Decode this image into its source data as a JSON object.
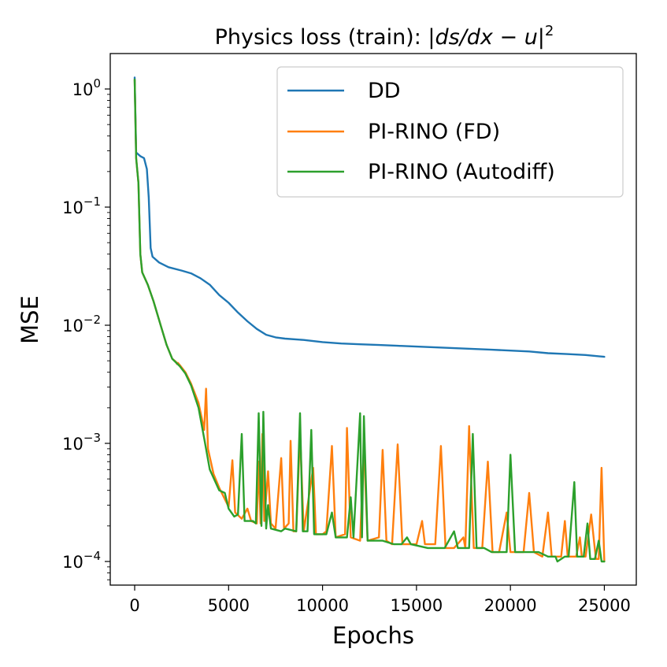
{
  "chart_data": {
    "type": "line",
    "title_prefix": "Physics loss (train): ",
    "title_math": "|ds/dx − u|",
    "title_exponent": "2",
    "xlabel": "Epochs",
    "ylabel": "MSE",
    "xlim": [
      -1300,
      26700
    ],
    "ylim_log10": [
      -4.2,
      0.3
    ],
    "y_scale": "log",
    "grid": false,
    "legend_position": "upper right",
    "x_ticks": [
      {
        "value": 0,
        "label": "0"
      },
      {
        "value": 5000,
        "label": "5000"
      },
      {
        "value": 10000,
        "label": "10000"
      },
      {
        "value": 15000,
        "label": "15000"
      },
      {
        "value": 20000,
        "label": "20000"
      },
      {
        "value": 25000,
        "label": "25000"
      }
    ],
    "y_ticks": [
      {
        "exp": 0,
        "base": "10",
        "sup": "0"
      },
      {
        "exp": -1,
        "base": "10",
        "sup": "−1"
      },
      {
        "exp": -2,
        "base": "10",
        "sup": "−2"
      },
      {
        "exp": -3,
        "base": "10",
        "sup": "−3"
      },
      {
        "exp": -4,
        "base": "10",
        "sup": "−4"
      }
    ],
    "series": [
      {
        "name": "DD",
        "color": "#1f77b4",
        "points": [
          [
            0,
            1.25
          ],
          [
            80,
            0.29
          ],
          [
            300,
            0.27
          ],
          [
            500,
            0.26
          ],
          [
            650,
            0.21
          ],
          [
            750,
            0.12
          ],
          [
            850,
            0.045
          ],
          [
            950,
            0.038
          ],
          [
            1300,
            0.034
          ],
          [
            1800,
            0.031
          ],
          [
            2500,
            0.029
          ],
          [
            3000,
            0.0275
          ],
          [
            3500,
            0.025
          ],
          [
            4000,
            0.022
          ],
          [
            4500,
            0.018
          ],
          [
            5000,
            0.0155
          ],
          [
            5500,
            0.0128
          ],
          [
            6000,
            0.0108
          ],
          [
            6500,
            0.0093
          ],
          [
            7000,
            0.0083
          ],
          [
            7500,
            0.0079
          ],
          [
            8000,
            0.0077
          ],
          [
            9000,
            0.0075
          ],
          [
            10000,
            0.0072
          ],
          [
            11000,
            0.007
          ],
          [
            12000,
            0.0069
          ],
          [
            13000,
            0.0068
          ],
          [
            14000,
            0.0067
          ],
          [
            15000,
            0.0066
          ],
          [
            16000,
            0.0065
          ],
          [
            17000,
            0.0064
          ],
          [
            18000,
            0.0063
          ],
          [
            19000,
            0.0062
          ],
          [
            20000,
            0.0061
          ],
          [
            21000,
            0.006
          ],
          [
            22000,
            0.0058
          ],
          [
            23000,
            0.0057
          ],
          [
            24000,
            0.0056
          ],
          [
            25000,
            0.0054
          ]
        ]
      },
      {
        "name": "PI-RINO (FD)",
        "color": "#ff7f0e",
        "points": [
          [
            0,
            1.2
          ],
          [
            80,
            0.26
          ],
          [
            200,
            0.16
          ],
          [
            300,
            0.04
          ],
          [
            400,
            0.028
          ],
          [
            700,
            0.022
          ],
          [
            1000,
            0.016
          ],
          [
            1400,
            0.0098
          ],
          [
            1700,
            0.0068
          ],
          [
            2000,
            0.0052
          ],
          [
            2200,
            0.0049
          ],
          [
            2250,
            0.0047
          ],
          [
            2300,
            0.0048
          ],
          [
            2400,
            0.0046
          ],
          [
            2700,
            0.004
          ],
          [
            3000,
            0.0032
          ],
          [
            3400,
            0.0022
          ],
          [
            3700,
            0.0013
          ],
          [
            3800,
            0.0029
          ],
          [
            3900,
            0.0009
          ],
          [
            4200,
            0.00055
          ],
          [
            4500,
            0.00042
          ],
          [
            5000,
            0.00029
          ],
          [
            5200,
            0.00072
          ],
          [
            5350,
            0.00026
          ],
          [
            5700,
            0.00023
          ],
          [
            6000,
            0.00028
          ],
          [
            6200,
            0.00022
          ],
          [
            6500,
            0.00021
          ],
          [
            6600,
            0.0007
          ],
          [
            6700,
            0.00021
          ],
          [
            6800,
            0.0012
          ],
          [
            6900,
            0.00022
          ],
          [
            7100,
            0.00058
          ],
          [
            7250,
            0.00021
          ],
          [
            7500,
            0.00019
          ],
          [
            7800,
            0.00075
          ],
          [
            7950,
            0.00019
          ],
          [
            8200,
            0.00021
          ],
          [
            8300,
            0.00105
          ],
          [
            8450,
            0.00018
          ],
          [
            8600,
            0.00018
          ],
          [
            8800,
            0.00125
          ],
          [
            9000,
            0.00018
          ],
          [
            9500,
            0.00062
          ],
          [
            9650,
            0.00017
          ],
          [
            10000,
            0.00017
          ],
          [
            10200,
            0.00018
          ],
          [
            10500,
            0.00095
          ],
          [
            10700,
            0.00016
          ],
          [
            11200,
            0.00017
          ],
          [
            11300,
            0.00135
          ],
          [
            11500,
            0.00016
          ],
          [
            12000,
            0.00015
          ],
          [
            12200,
            0.00095
          ],
          [
            12400,
            0.00015
          ],
          [
            13000,
            0.00016
          ],
          [
            13200,
            0.00088
          ],
          [
            13400,
            0.00015
          ],
          [
            13700,
            0.00014
          ],
          [
            14000,
            0.00098
          ],
          [
            14250,
            0.00014
          ],
          [
            15000,
            0.00014
          ],
          [
            15300,
            0.00022
          ],
          [
            15450,
            0.00014
          ],
          [
            16000,
            0.00014
          ],
          [
            16300,
            0.00095
          ],
          [
            16550,
            0.00013
          ],
          [
            17000,
            0.00013
          ],
          [
            17500,
            0.00016
          ],
          [
            17600,
            0.00013
          ],
          [
            17800,
            0.0014
          ],
          [
            18050,
            0.00013
          ],
          [
            18500,
            0.00013
          ],
          [
            18800,
            0.0007
          ],
          [
            19050,
            0.00012
          ],
          [
            19400,
            0.00012
          ],
          [
            19800,
            0.00026
          ],
          [
            20000,
            0.00012
          ],
          [
            20700,
            0.00012
          ],
          [
            21000,
            0.00038
          ],
          [
            21250,
            0.00012
          ],
          [
            21700,
            0.00011
          ],
          [
            22000,
            0.00026
          ],
          [
            22200,
            0.00011
          ],
          [
            22700,
            0.00011
          ],
          [
            22900,
            0.00022
          ],
          [
            23050,
            0.00011
          ],
          [
            23500,
            0.00011
          ],
          [
            23700,
            0.00016
          ],
          [
            23800,
            0.00011
          ],
          [
            24000,
            0.00011
          ],
          [
            24300,
            0.00025
          ],
          [
            24550,
            0.000105
          ],
          [
            24700,
            0.000105
          ],
          [
            24850,
            0.00062
          ],
          [
            25000,
            0.0001
          ]
        ]
      },
      {
        "name": "PI-RINO (Autodiff)",
        "color": "#2ca02c",
        "points": [
          [
            0,
            1.2
          ],
          [
            80,
            0.26
          ],
          [
            200,
            0.16
          ],
          [
            300,
            0.04
          ],
          [
            400,
            0.028
          ],
          [
            700,
            0.022
          ],
          [
            1000,
            0.016
          ],
          [
            1400,
            0.0098
          ],
          [
            1700,
            0.0068
          ],
          [
            2000,
            0.0052
          ],
          [
            2400,
            0.0045
          ],
          [
            2700,
            0.0039
          ],
          [
            3000,
            0.0031
          ],
          [
            3400,
            0.002
          ],
          [
            3700,
            0.0011
          ],
          [
            4000,
            0.0006
          ],
          [
            4500,
            0.0004
          ],
          [
            4800,
            0.00038
          ],
          [
            5000,
            0.00028
          ],
          [
            5300,
            0.00024
          ],
          [
            5500,
            0.00025
          ],
          [
            5700,
            0.0012
          ],
          [
            5850,
            0.00022
          ],
          [
            6300,
            0.00022
          ],
          [
            6450,
            0.00021
          ],
          [
            6600,
            0.0018
          ],
          [
            6750,
            0.0002
          ],
          [
            6850,
            0.00185
          ],
          [
            7000,
            0.00019
          ],
          [
            7100,
            0.0003
          ],
          [
            7250,
            0.00019
          ],
          [
            7800,
            0.00018
          ],
          [
            8000,
            0.00019
          ],
          [
            8600,
            0.00018
          ],
          [
            8800,
            0.0018
          ],
          [
            8950,
            0.00018
          ],
          [
            9200,
            0.00018
          ],
          [
            9400,
            0.0013
          ],
          [
            9550,
            0.00017
          ],
          [
            10200,
            0.00017
          ],
          [
            10500,
            0.00026
          ],
          [
            10700,
            0.00016
          ],
          [
            11300,
            0.00016
          ],
          [
            11500,
            0.00035
          ],
          [
            11650,
            0.00016
          ],
          [
            12000,
            0.0018
          ],
          [
            12100,
            0.00016
          ],
          [
            12200,
            0.0017
          ],
          [
            12400,
            0.00015
          ],
          [
            12800,
            0.00015
          ],
          [
            13200,
            0.00015
          ],
          [
            13800,
            0.00014
          ],
          [
            14200,
            0.00014
          ],
          [
            14500,
            0.00016
          ],
          [
            14700,
            0.00014
          ],
          [
            15600,
            0.00013
          ],
          [
            16500,
            0.00013
          ],
          [
            17000,
            0.00018
          ],
          [
            17200,
            0.00013
          ],
          [
            17800,
            0.00013
          ],
          [
            18000,
            0.0012
          ],
          [
            18200,
            0.00013
          ],
          [
            18600,
            0.00013
          ],
          [
            19000,
            0.00012
          ],
          [
            19800,
            0.00012
          ],
          [
            20000,
            0.0008
          ],
          [
            20250,
            0.00012
          ],
          [
            20800,
            0.00012
          ],
          [
            21500,
            0.00012
          ],
          [
            22000,
            0.00011
          ],
          [
            22400,
            0.00011
          ],
          [
            22500,
            0.0001
          ],
          [
            22900,
            0.00011
          ],
          [
            23100,
            0.00011
          ],
          [
            23400,
            0.00047
          ],
          [
            23550,
            0.00011
          ],
          [
            23900,
            0.00011
          ],
          [
            24100,
            0.00021
          ],
          [
            24250,
            0.000105
          ],
          [
            24500,
            0.000105
          ],
          [
            24700,
            0.00015
          ],
          [
            24850,
            0.0001
          ],
          [
            25000,
            0.0001
          ]
        ]
      }
    ]
  }
}
